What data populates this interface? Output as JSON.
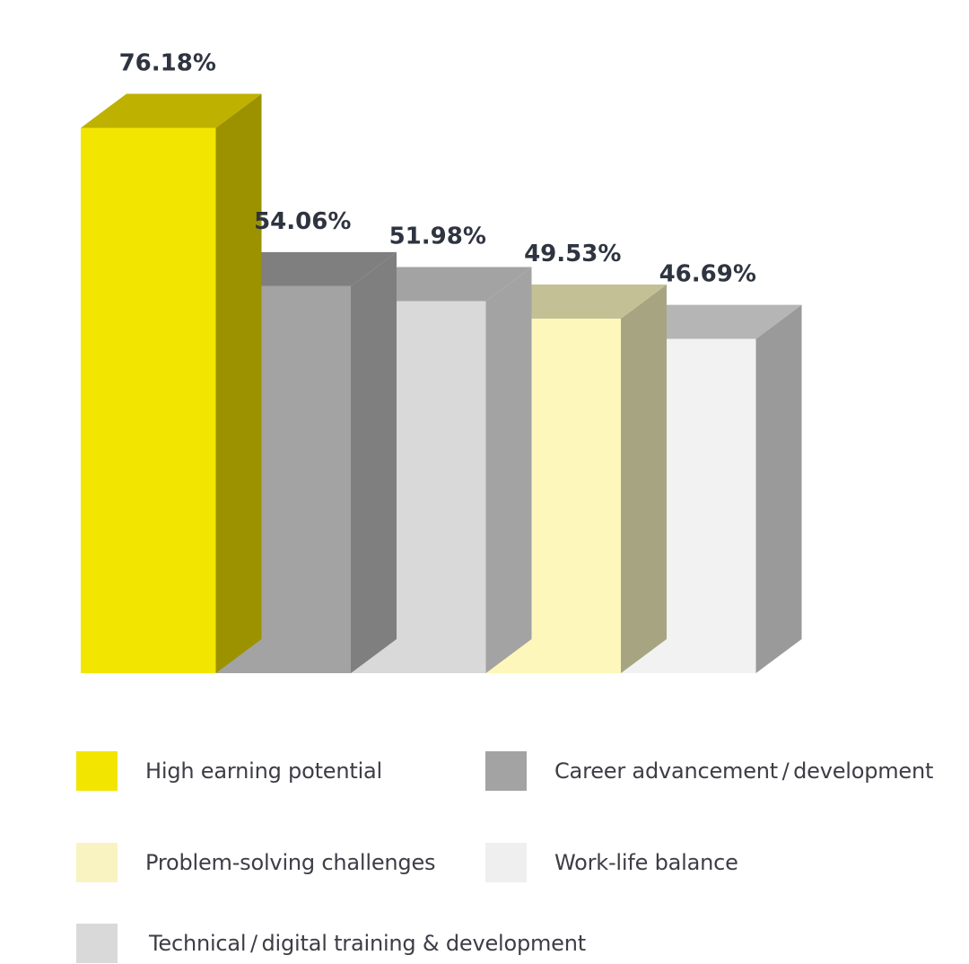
{
  "chart_data": {
    "type": "bar",
    "style": "3d",
    "title": "",
    "xlabel": "",
    "ylabel": "",
    "grid": false,
    "legend_position": "bottom",
    "ylim": [
      0,
      100
    ],
    "categories": [
      "High earning potential",
      "Career advancement / development",
      "Technical / digital training & development",
      "Problem-solving challenges",
      "Work-life balance"
    ],
    "values": [
      76.18,
      54.06,
      51.98,
      49.53,
      46.69
    ],
    "value_labels": [
      "76.18%",
      "54.06%",
      "51.98%",
      "49.53%",
      "46.69%"
    ],
    "colors": [
      "#f2e500",
      "#a3a3a3",
      "#d9d9d9",
      "#fdf7bb",
      "#f2f2f2"
    ],
    "top_colors": [
      "#bfb100",
      "#7f7f7f",
      "#a3a3a3",
      "#c4c095",
      "#b5b5b5"
    ],
    "side_colors": [
      "#9c9200",
      "#7f7f7f",
      "#a3a3a3",
      "#a7a581",
      "#9a9a9a"
    ],
    "legend": [
      {
        "label": "High earning potential",
        "color": "#f2e500"
      },
      {
        "label": "Career advancement / development",
        "color": "#a3a3a3"
      },
      {
        "label": "Problem-solving challenges",
        "color": "#f9f3c2"
      },
      {
        "label": "Work-life balance",
        "color": "#efefef"
      },
      {
        "label": "Technical / digital training & development",
        "color": "#d9d9d9"
      }
    ]
  }
}
